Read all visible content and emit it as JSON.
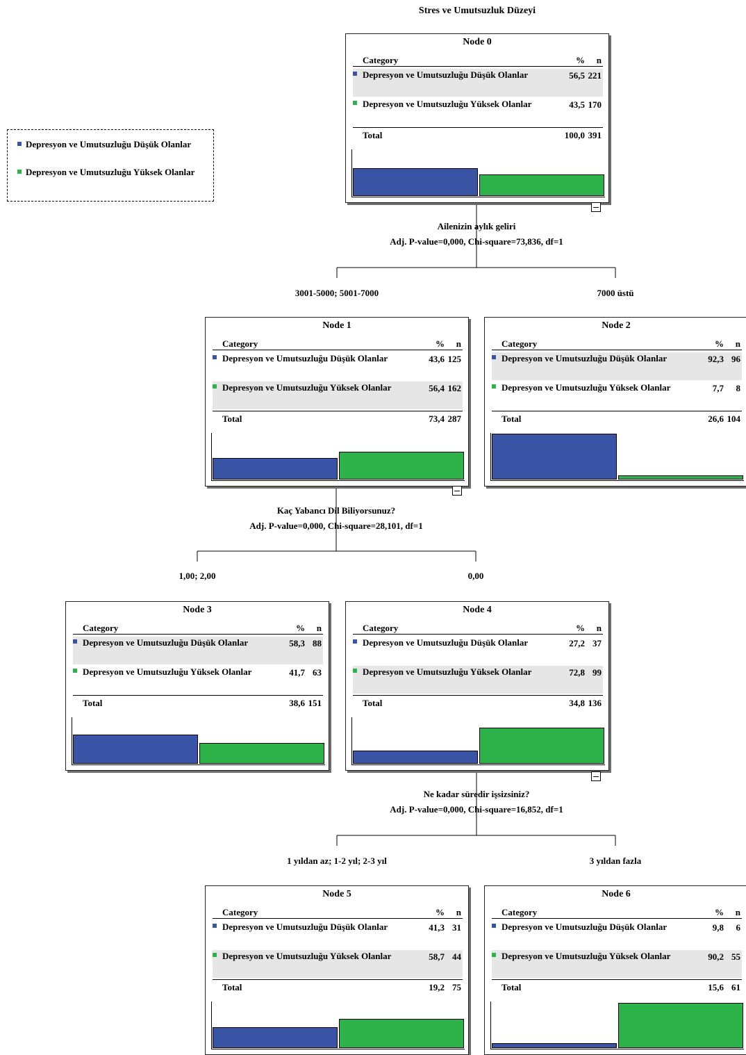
{
  "title": "Stres ve Umutsuzluk Düzeyi",
  "colors": {
    "low": "#3954a4",
    "high": "#2eb34a"
  },
  "legend": {
    "items": [
      {
        "label": "Depresyon ve Umutsuzluğu Düşük Olanlar",
        "color": "#3954a4"
      },
      {
        "label": "Depresyon ve Umutsuzluğu Yüksek Olanlar",
        "color": "#2eb34a"
      }
    ]
  },
  "table_headers": {
    "category": "Category",
    "percent": "%",
    "n": "n",
    "total": "Total"
  },
  "nodes": [
    {
      "name": "Node 0",
      "rows": [
        {
          "label": "Depresyon ve Umutsuzluğu Düşük Olanlar",
          "pct": "56,5",
          "n": "221"
        },
        {
          "label": "Depresyon ve Umutsuzluğu Yüksek Olanlar",
          "pct": "43,5",
          "n": "170"
        }
      ],
      "total_pct": "100,0",
      "total_n": "391",
      "bars": [
        56.5,
        43.5
      ]
    },
    {
      "name": "Node 1",
      "rows": [
        {
          "label": "Depresyon ve Umutsuzluğu Düşük Olanlar",
          "pct": "43,6",
          "n": "125"
        },
        {
          "label": "Depresyon ve Umutsuzluğu Yüksek Olanlar",
          "pct": "56,4",
          "n": "162"
        }
      ],
      "total_pct": "73,4",
      "total_n": "287",
      "bars": [
        43.6,
        56.4
      ]
    },
    {
      "name": "Node 2",
      "rows": [
        {
          "label": "Depresyon ve Umutsuzluğu Düşük Olanlar",
          "pct": "92,3",
          "n": "96"
        },
        {
          "label": "Depresyon ve Umutsuzluğu Yüksek Olanlar",
          "pct": "7,7",
          "n": "8"
        }
      ],
      "total_pct": "26,6",
      "total_n": "104",
      "bars": [
        92.3,
        7.7
      ]
    },
    {
      "name": "Node 3",
      "rows": [
        {
          "label": "Depresyon ve Umutsuzluğu Düşük Olanlar",
          "pct": "58,3",
          "n": "88"
        },
        {
          "label": "Depresyon ve Umutsuzluğu Yüksek Olanlar",
          "pct": "41,7",
          "n": "63"
        }
      ],
      "total_pct": "38,6",
      "total_n": "151",
      "bars": [
        58.3,
        41.7
      ]
    },
    {
      "name": "Node 4",
      "rows": [
        {
          "label": "Depresyon ve Umutsuzluğu Düşük Olanlar",
          "pct": "27,2",
          "n": "37"
        },
        {
          "label": "Depresyon ve Umutsuzluğu Yüksek Olanlar",
          "pct": "72,8",
          "n": "99"
        }
      ],
      "total_pct": "34,8",
      "total_n": "136",
      "bars": [
        27.2,
        72.8
      ]
    },
    {
      "name": "Node 5",
      "rows": [
        {
          "label": "Depresyon ve Umutsuzluğu Düşük Olanlar",
          "pct": "41,3",
          "n": "31"
        },
        {
          "label": "Depresyon ve Umutsuzluğu Yüksek Olanlar",
          "pct": "58,7",
          "n": "44"
        }
      ],
      "total_pct": "19,2",
      "total_n": "75",
      "bars": [
        41.3,
        58.7
      ]
    },
    {
      "name": "Node 6",
      "rows": [
        {
          "label": "Depresyon ve Umutsuzluğu Düşük Olanlar",
          "pct": "9,8",
          "n": "6"
        },
        {
          "label": "Depresyon ve Umutsuzluğu Yüksek Olanlar",
          "pct": "90,2",
          "n": "55"
        }
      ],
      "total_pct": "15,6",
      "total_n": "61",
      "bars": [
        9.8,
        90.2
      ]
    }
  ],
  "splits": [
    {
      "variable": "Ailenizin aylık geliri",
      "stats": "Adj. P-value=0,000, Chi-square=73,836, df=1",
      "left_branch": "3001-5000; 5001-7000",
      "right_branch": "7000 üstü"
    },
    {
      "variable": "Kaç Yabancı Dil Biliyorsunuz?",
      "stats": "Adj. P-value=0,000, Chi-square=28,101, df=1",
      "left_branch": "1,00; 2,00",
      "right_branch": "0,00"
    },
    {
      "variable": "Ne kadar süredir işsizsiniz?",
      "stats": "Adj. P-value=0,000, Chi-square=16,852, df=1",
      "left_branch": "1 yıldan az; 1-2 yıl; 2-3 yıl",
      "right_branch": "3 yıldan fazla"
    }
  ]
}
